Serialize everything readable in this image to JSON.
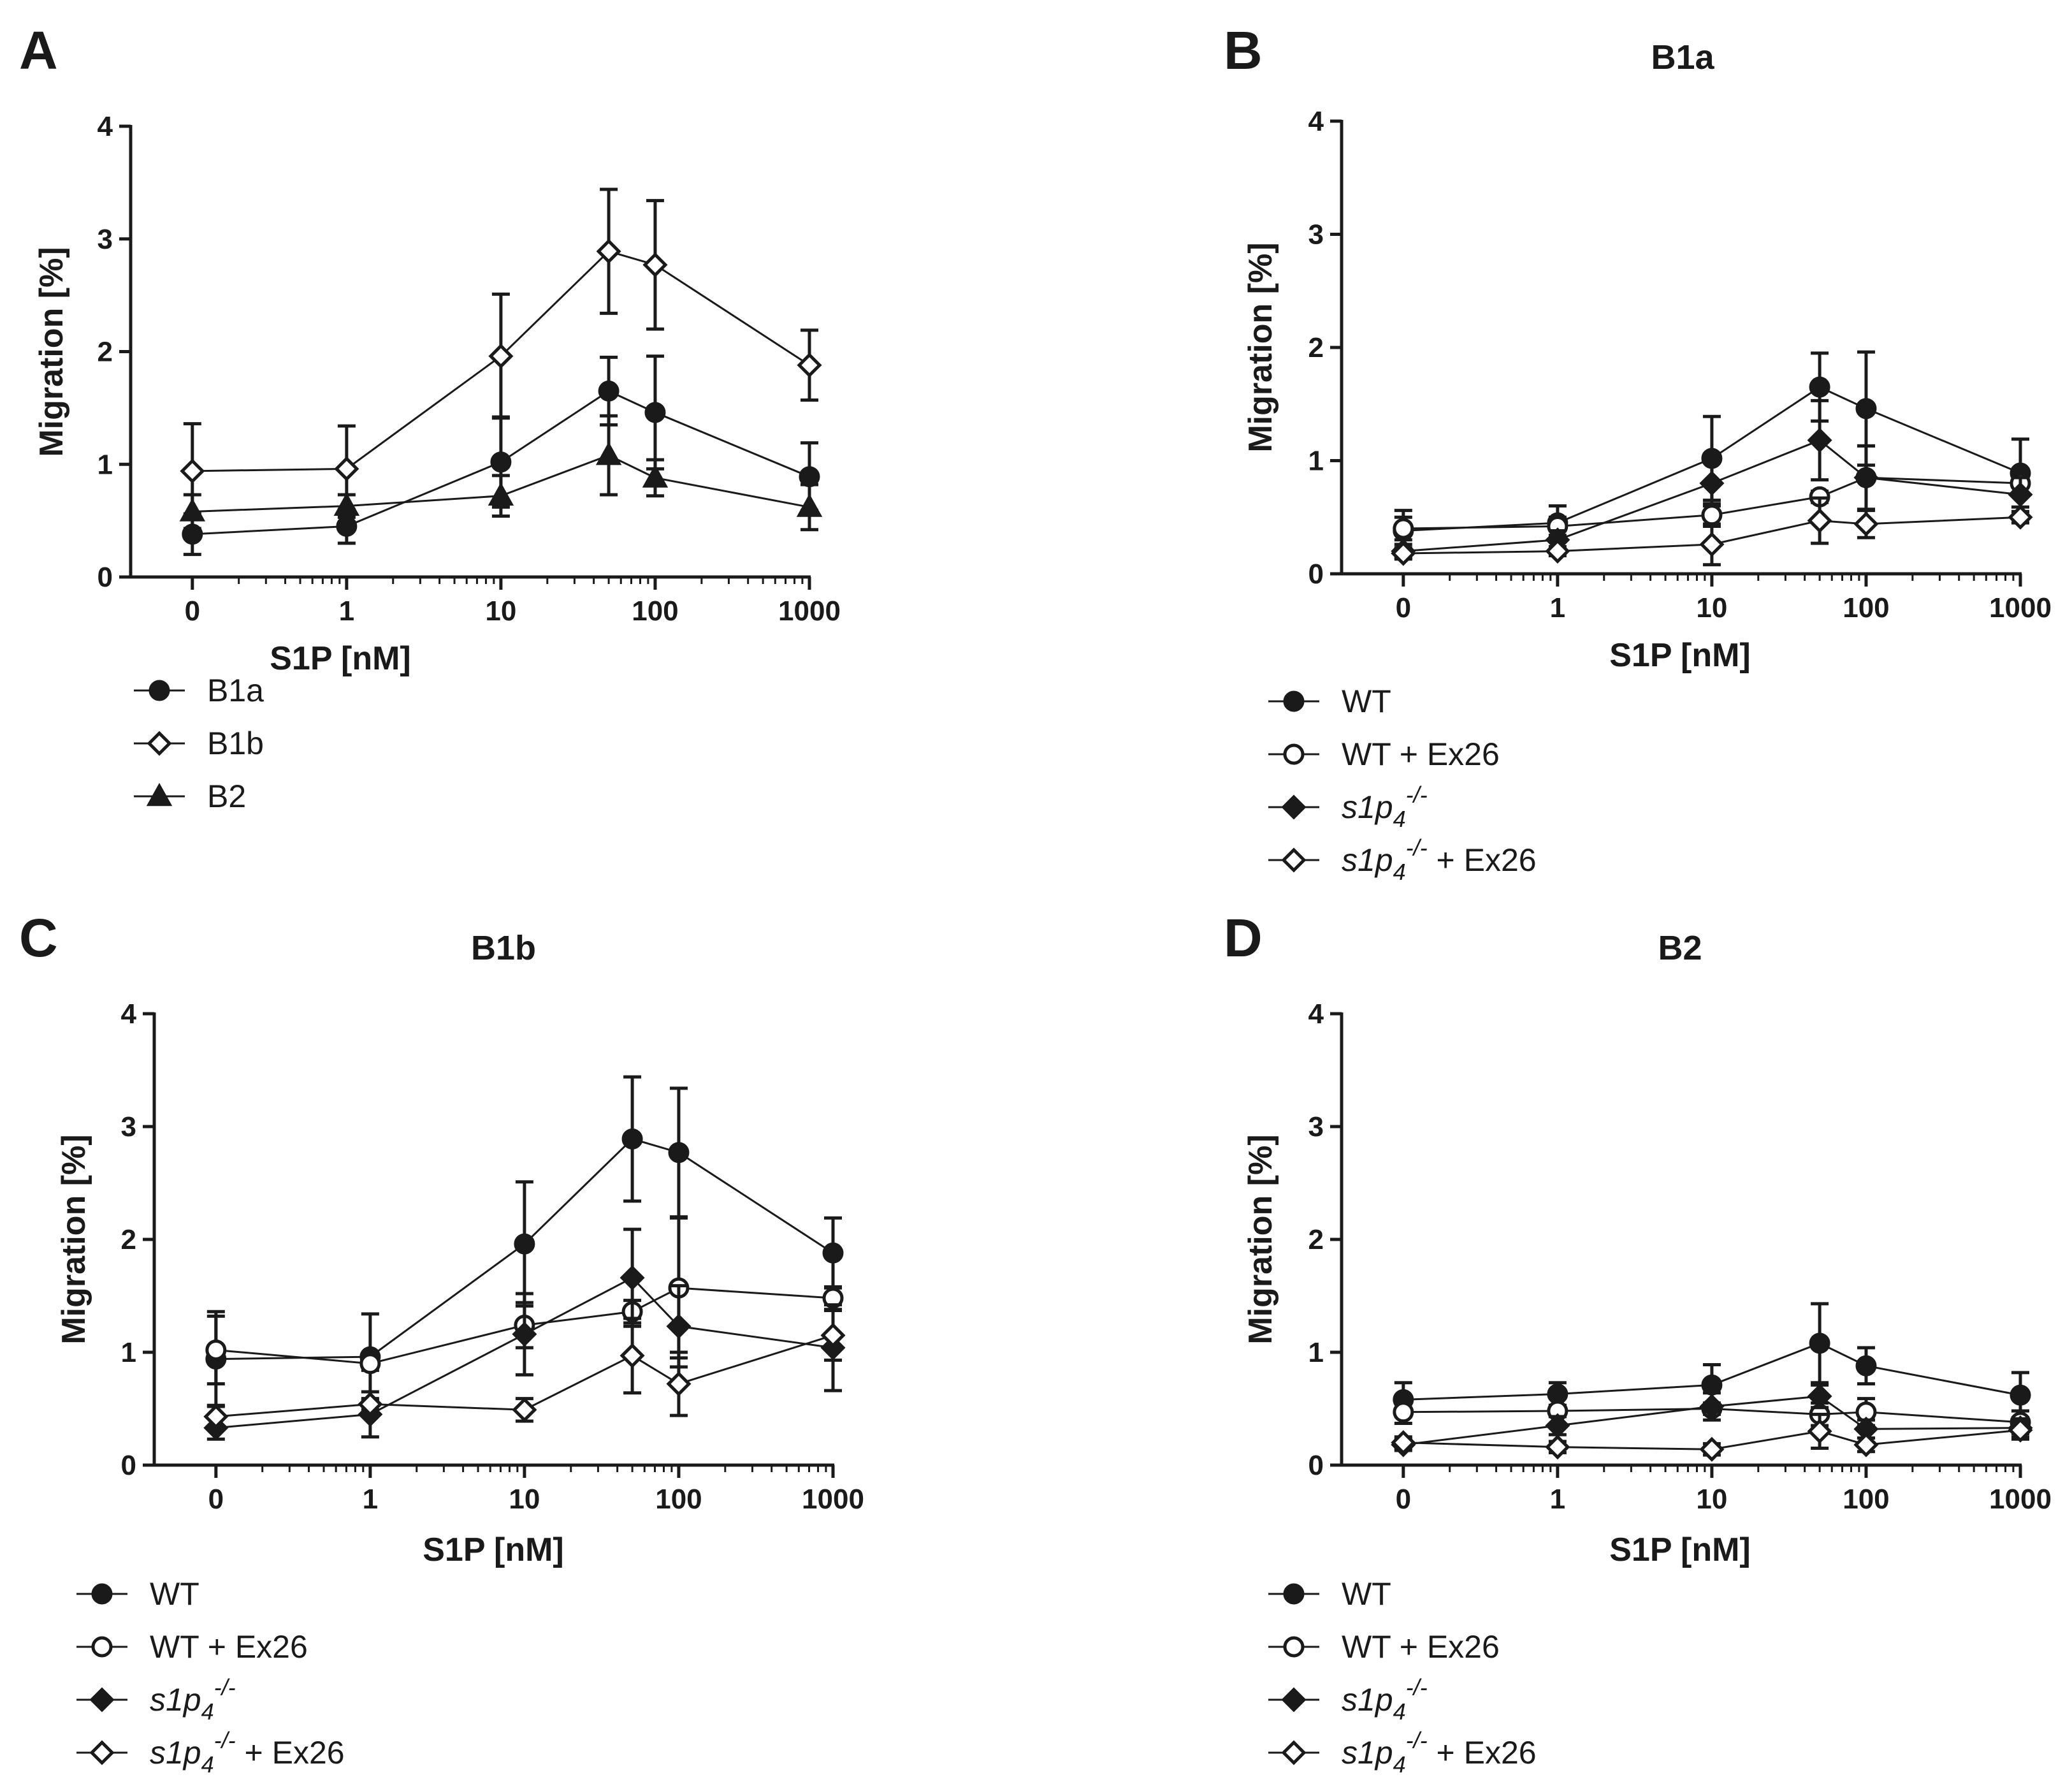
{
  "figure": {
    "panels": [
      {
        "id": "A",
        "letter": "A",
        "title": "",
        "xlabel": "S1P [nM]",
        "ylabel": "Migration [%]"
      },
      {
        "id": "B",
        "letter": "B",
        "title": "B1a",
        "xlabel": "S1P [nM]",
        "ylabel": "Migration [%]"
      },
      {
        "id": "C",
        "letter": "C",
        "title": "B1b",
        "xlabel": "S1P [nM]",
        "ylabel": "Migration [%]"
      },
      {
        "id": "D",
        "letter": "D",
        "title": "B2",
        "xlabel": "S1P [nM]",
        "ylabel": "Migration [%]"
      }
    ]
  },
  "chart_data": [
    {
      "panel": "A",
      "type": "line",
      "title": "",
      "xlabel": "S1P [nM]",
      "ylabel": "Migration [%]",
      "x": [
        0,
        1,
        10,
        50,
        100,
        1000
      ],
      "x_tick_labels": [
        "0",
        "1",
        "10",
        "100",
        "1000"
      ],
      "y_tick_labels": [
        "0",
        "1",
        "2",
        "3",
        "4"
      ],
      "ylim": [
        0,
        4
      ],
      "series": [
        {
          "name": "B1a",
          "label": "B1a",
          "marker": "circle-filled",
          "values": [
            0.38,
            0.45,
            1.02,
            1.65,
            1.46,
            0.89
          ],
          "errors": [
            0.18,
            0.15,
            0.4,
            0.3,
            0.5,
            0.3
          ]
        },
        {
          "name": "B1b",
          "label": "B1b",
          "marker": "diamond-open",
          "values": [
            0.94,
            0.96,
            1.96,
            2.89,
            2.77,
            1.88
          ],
          "errors": [
            0.42,
            0.38,
            0.55,
            0.55,
            0.57,
            0.31
          ]
        },
        {
          "name": "B2",
          "label": "B2",
          "marker": "triangle-filled",
          "values": [
            0.58,
            0.63,
            0.72,
            1.08,
            0.88,
            0.62
          ],
          "errors": [
            0.15,
            0.1,
            0.18,
            0.35,
            0.16,
            0.2
          ]
        }
      ]
    },
    {
      "panel": "B",
      "type": "line",
      "title": "B1a",
      "xlabel": "S1P [nM]",
      "ylabel": "Migration [%]",
      "x": [
        0,
        1,
        10,
        50,
        100,
        1000
      ],
      "x_tick_labels": [
        "0",
        "1",
        "10",
        "100",
        "1000"
      ],
      "y_tick_labels": [
        "0",
        "1",
        "2",
        "3",
        "4"
      ],
      "ylim": [
        0,
        4
      ],
      "series": [
        {
          "name": "WT",
          "label": "WT",
          "marker": "circle-filled",
          "values": [
            0.38,
            0.45,
            1.02,
            1.65,
            1.46,
            0.89
          ],
          "errors": [
            0.18,
            0.15,
            0.37,
            0.3,
            0.5,
            0.3
          ]
        },
        {
          "name": "WT + Ex26",
          "label": "WT + Ex26",
          "marker": "circle-open",
          "values": [
            0.4,
            0.42,
            0.52,
            0.68,
            0.85,
            0.8
          ],
          "errors": [
            0.1,
            0.08,
            0.1,
            0.05,
            0.28,
            0.08
          ]
        },
        {
          "name": "s1p4-/-",
          "label": "s1p",
          "label_sub": "4",
          "label_sup": "-/-",
          "label_tail": "",
          "marker": "diamond-filled",
          "values": [
            0.2,
            0.3,
            0.8,
            1.18,
            0.85,
            0.7
          ],
          "errors": [
            0.06,
            0.08,
            0.2,
            0.35,
            0.28,
            0.15
          ]
        },
        {
          "name": "s1p4-/- + Ex26",
          "label": "s1p",
          "label_sub": "4",
          "label_sup": "-/-",
          "label_tail": " + Ex26",
          "marker": "diamond-open",
          "values": [
            0.18,
            0.2,
            0.26,
            0.47,
            0.44,
            0.5
          ],
          "errors": [
            0.05,
            0.04,
            0.18,
            0.2,
            0.12,
            0.05
          ]
        }
      ]
    },
    {
      "panel": "C",
      "type": "line",
      "title": "B1b",
      "xlabel": "S1P [nM]",
      "ylabel": "Migration [%]",
      "x": [
        0,
        1,
        10,
        50,
        100,
        1000
      ],
      "x_tick_labels": [
        "0",
        "1",
        "10",
        "100",
        "1000"
      ],
      "y_tick_labels": [
        "0",
        "1",
        "2",
        "3",
        "4"
      ],
      "ylim": [
        0,
        4
      ],
      "series": [
        {
          "name": "WT",
          "label": "WT",
          "marker": "circle-filled",
          "values": [
            0.94,
            0.96,
            1.96,
            2.89,
            2.77,
            1.88
          ],
          "errors": [
            0.42,
            0.38,
            0.55,
            0.55,
            0.57,
            0.31
          ]
        },
        {
          "name": "WT + Ex26",
          "label": "WT + Ex26",
          "marker": "circle-open",
          "values": [
            1.02,
            0.9,
            1.24,
            1.36,
            1.57,
            1.48
          ],
          "errors": [
            0.3,
            0.06,
            0.2,
            0.1,
            0.62,
            0.1
          ]
        },
        {
          "name": "s1p4-/-",
          "label": "s1p",
          "label_sub": "4",
          "label_sup": "-/-",
          "label_tail": "",
          "marker": "diamond-filled",
          "values": [
            0.33,
            0.45,
            1.16,
            1.66,
            1.23,
            1.04
          ],
          "errors": [
            0.1,
            0.2,
            0.36,
            0.43,
            0.36,
            0.38
          ]
        },
        {
          "name": "s1p4-/- + Ex26",
          "label": "s1p",
          "label_sub": "4",
          "label_sup": "-/-",
          "label_tail": " + Ex26",
          "marker": "diamond-open",
          "values": [
            0.43,
            0.54,
            0.49,
            0.97,
            0.72,
            1.15
          ],
          "errors": [
            0.1,
            0.05,
            0.1,
            0.33,
            0.28,
            0.22
          ]
        }
      ]
    },
    {
      "panel": "D",
      "type": "line",
      "title": "B2",
      "xlabel": "S1P [nM]",
      "ylabel": "Migration [%]",
      "x": [
        0,
        1,
        10,
        50,
        100,
        1000
      ],
      "x_tick_labels": [
        "0",
        "1",
        "10",
        "100",
        "1000"
      ],
      "y_tick_labels": [
        "0",
        "1",
        "2",
        "3",
        "4"
      ],
      "ylim": [
        0,
        4
      ],
      "series": [
        {
          "name": "WT",
          "label": "WT",
          "marker": "circle-filled",
          "values": [
            0.58,
            0.63,
            0.71,
            1.08,
            0.88,
            0.62
          ],
          "errors": [
            0.15,
            0.1,
            0.18,
            0.35,
            0.16,
            0.2
          ]
        },
        {
          "name": "WT + Ex26",
          "label": "WT + Ex26",
          "marker": "circle-open",
          "values": [
            0.47,
            0.48,
            0.5,
            0.45,
            0.47,
            0.38
          ],
          "errors": [
            0.1,
            0.05,
            0.05,
            0.1,
            0.12,
            0.1
          ]
        },
        {
          "name": "s1p4-/-",
          "label": "s1p",
          "label_sub": "4",
          "label_sup": "-/-",
          "label_tail": "",
          "marker": "diamond-filled",
          "values": [
            0.18,
            0.35,
            0.52,
            0.61,
            0.32,
            0.33
          ],
          "errors": [
            0.05,
            0.08,
            0.12,
            0.1,
            0.08,
            0.08
          ]
        },
        {
          "name": "s1p4-/- + Ex26",
          "label": "s1p",
          "label_sub": "4",
          "label_sup": "-/-",
          "label_tail": " + Ex26",
          "marker": "diamond-open",
          "values": [
            0.2,
            0.16,
            0.14,
            0.3,
            0.18,
            0.31
          ],
          "errors": [
            0.05,
            0.05,
            0.05,
            0.15,
            0.06,
            0.08
          ]
        }
      ]
    }
  ]
}
